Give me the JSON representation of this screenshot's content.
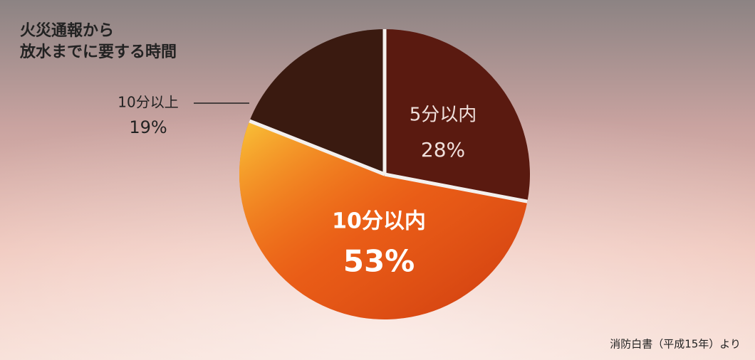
{
  "chart_data": {
    "type": "pie",
    "title": [
      "火災通報から",
      "放水までに要する時間"
    ],
    "categories": [
      "5分以内",
      "10分以内",
      "10分以上"
    ],
    "values": [
      28,
      53,
      19
    ],
    "value_labels": [
      "28%",
      "53%",
      "19%"
    ],
    "colors": [
      "#5a1a10",
      "#e0501a",
      "#3a1a10"
    ],
    "source": "消防白書（平成15年）より"
  }
}
